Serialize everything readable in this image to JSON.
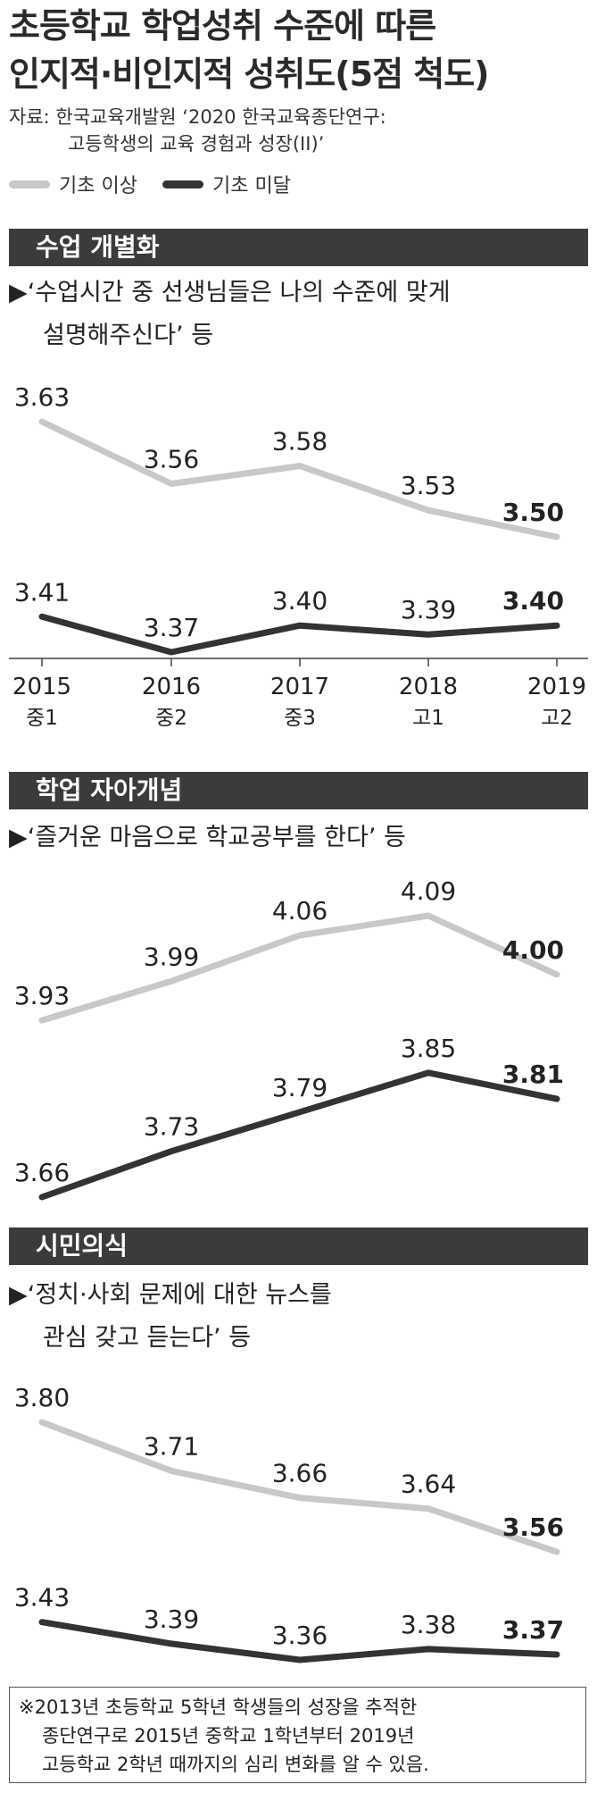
{
  "title_lines": [
    "초등학교 학업성취 수준에 따른",
    "인지적·비인지적 성취도(5점 척도)"
  ],
  "source_lines": [
    "자료: 한국교육개발원 ‘2020 한국교육종단연구:",
    "고등학생의 교육 경험과 성장(II)’"
  ],
  "legend": [
    {
      "label": "기초 이상",
      "color": "#c8c8c8"
    },
    {
      "label": "기초 미달",
      "color": "#333333"
    }
  ],
  "colors": {
    "light": "#c8c8c8",
    "dark": "#333333",
    "header_bg": "#3b3b3b"
  },
  "sections": [
    {
      "header": "수업 개별화",
      "quote_lines": [
        "▶‘수업시간 중 선생님들은 나의 수준에 맞게",
        "설명해주신다’ 등"
      ]
    },
    {
      "header": "학업 자아개념",
      "quote_lines": [
        "▶‘즐거운 마음으로 학교공부를 한다’ 등"
      ]
    },
    {
      "header": "시민의식",
      "quote_lines": [
        "▶‘정치·사회 문제에 대한 뉴스를",
        "관심 갖고 듣는다’ 등"
      ]
    }
  ],
  "chart_data": [
    {
      "type": "line",
      "title": "수업 개별화",
      "categories": [
        "2015",
        "2016",
        "2017",
        "2018",
        "2019"
      ],
      "sub_categories": [
        "중1",
        "중2",
        "중3",
        "고1",
        "고2"
      ],
      "series": [
        {
          "name": "기초 이상",
          "values": [
            3.63,
            3.56,
            3.58,
            3.53,
            3.5
          ],
          "labels": [
            "3.63",
            "3.56",
            "3.58",
            "3.53",
            "3.50"
          ]
        },
        {
          "name": "기초 미달",
          "values": [
            3.41,
            3.37,
            3.4,
            3.39,
            3.4
          ],
          "labels": [
            "3.41",
            "3.37",
            "3.40",
            "3.39",
            "3.40"
          ]
        }
      ]
    },
    {
      "type": "line",
      "title": "학업 자아개념",
      "categories": [
        "2015",
        "2016",
        "2017",
        "2018",
        "2019"
      ],
      "series": [
        {
          "name": "기초 이상",
          "values": [
            3.93,
            3.99,
            4.06,
            4.09,
            4.0
          ],
          "labels": [
            "3.93",
            "3.99",
            "4.06",
            "4.09",
            "4.00"
          ]
        },
        {
          "name": "기초 미달",
          "values": [
            3.66,
            3.73,
            3.79,
            3.85,
            3.81
          ],
          "labels": [
            "3.66",
            "3.73",
            "3.79",
            "3.85",
            "3.81"
          ]
        }
      ]
    },
    {
      "type": "line",
      "title": "시민의식",
      "categories": [
        "2015",
        "2016",
        "2017",
        "2018",
        "2019"
      ],
      "series": [
        {
          "name": "기초 이상",
          "values": [
            3.8,
            3.71,
            3.66,
            3.64,
            3.56
          ],
          "labels": [
            "3.80",
            "3.71",
            "3.66",
            "3.64",
            "3.56"
          ]
        },
        {
          "name": "기초 미달",
          "values": [
            3.43,
            3.39,
            3.36,
            3.38,
            3.37
          ],
          "labels": [
            "3.43",
            "3.39",
            "3.36",
            "3.38",
            "3.37"
          ]
        }
      ]
    }
  ],
  "footnote_lines": [
    "※2013년 초등학교 5학년 학생들의 성장을 추적한",
    "종단연구로 2015년 중학교 1학년부터 2019년",
    "고등학교 2학년 때까지의 심리 변화를 알 수 있음."
  ]
}
